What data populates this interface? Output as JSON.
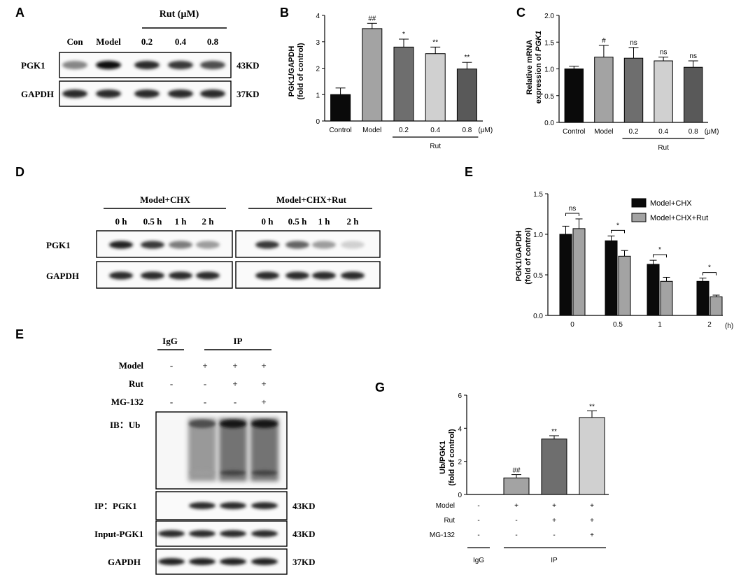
{
  "panel_letters": {
    "a": "A",
    "b": "B",
    "c": "C",
    "d": "D",
    "e1": "E",
    "e2": "E",
    "g": "G"
  },
  "panel_a": {
    "rut_header": "Rut (μM)",
    "lanes": [
      "Con",
      "Model",
      "0.2",
      "0.4",
      "0.8"
    ],
    "rows": [
      "PGK1",
      "GAPDH"
    ],
    "sizes": [
      "43KD",
      "37KD"
    ],
    "bands": [
      [
        0.45,
        1.0,
        0.85,
        0.8,
        0.7
      ],
      [
        0.85,
        0.85,
        0.85,
        0.85,
        0.85
      ]
    ]
  },
  "panel_d": {
    "groups": [
      "Model+CHX",
      "Model+CHX+Rut"
    ],
    "times": [
      "0 h",
      "0.5 h",
      "1 h",
      "2 h"
    ],
    "rows": [
      "PGK1",
      "GAPDH"
    ],
    "bands": [
      [
        0.9,
        0.8,
        0.5,
        0.35,
        0.8,
        0.6,
        0.35,
        0.12
      ],
      [
        0.85,
        0.85,
        0.85,
        0.85,
        0.85,
        0.85,
        0.85,
        0.85
      ]
    ]
  },
  "panel_f": {
    "header_igg": "IgG",
    "header_ip": "IP",
    "conditions": [
      {
        "label": "Model",
        "signs": [
          "-",
          "+",
          "+",
          "+"
        ]
      },
      {
        "label": "Rut",
        "signs": [
          "-",
          "-",
          "+",
          "+"
        ]
      },
      {
        "label": "MG-132",
        "signs": [
          "-",
          "-",
          "-",
          "+"
        ]
      }
    ],
    "blots": [
      {
        "label": "IB：Ub",
        "size": ""
      },
      {
        "label": "IP：PGK1",
        "size": "43KD"
      },
      {
        "label": "Input-PGK1",
        "size": "43KD"
      },
      {
        "label": "GAPDH",
        "size": "37KD"
      }
    ]
  },
  "chart_data": [
    {
      "panel": "B",
      "type": "bar",
      "ylabel": "PGK1/GAPDH (fold of control)",
      "categories": [
        "Control",
        "Model",
        "0.2",
        "0.4",
        "0.8"
      ],
      "values": [
        1.0,
        3.5,
        2.8,
        2.55,
        1.97
      ],
      "errors": [
        0.25,
        0.2,
        0.3,
        0.25,
        0.25
      ],
      "significance": [
        "",
        "##",
        "*",
        "**",
        "**"
      ],
      "colors": [
        "#0a0a0a",
        "#a3a3a3",
        "#6e6e6e",
        "#d0d0d0",
        "#595959"
      ],
      "ylim": [
        0,
        4
      ],
      "yticks": [
        "0",
        "1",
        "2",
        "3",
        "4"
      ],
      "unit": "(μM)",
      "group_label": "Rut"
    },
    {
      "panel": "C",
      "type": "bar",
      "ylabel": "Relative mRNA expression of PGK1",
      "categories": [
        "Control",
        "Model",
        "0.2",
        "0.4",
        "0.8"
      ],
      "values": [
        1.0,
        1.22,
        1.2,
        1.15,
        1.03
      ],
      "errors": [
        0.05,
        0.22,
        0.2,
        0.07,
        0.12
      ],
      "significance": [
        "",
        "#",
        "ns",
        "ns",
        "ns"
      ],
      "colors": [
        "#0a0a0a",
        "#a3a3a3",
        "#6e6e6e",
        "#d0d0d0",
        "#595959"
      ],
      "ylim": [
        0,
        2.0
      ],
      "yticks": [
        "0.0",
        "0.5",
        "1.0",
        "1.5",
        "2.0"
      ],
      "unit": "(μM)",
      "group_label": "Rut"
    },
    {
      "panel": "E",
      "type": "bar",
      "ylabel": "PGK1/GAPDH (fold of control)",
      "categories": [
        "0",
        "0.5",
        "1",
        "2"
      ],
      "unit": "(h)",
      "series": [
        {
          "name": "Model+CHX",
          "values": [
            1.0,
            0.92,
            0.63,
            0.42
          ],
          "errors": [
            0.1,
            0.06,
            0.05,
            0.04
          ],
          "color": "#0a0a0a"
        },
        {
          "name": "Model+CHX+Rut",
          "values": [
            1.07,
            0.73,
            0.42,
            0.23
          ],
          "errors": [
            0.12,
            0.07,
            0.05,
            0.02
          ],
          "color": "#a3a3a3"
        }
      ],
      "significance": [
        "ns",
        "*",
        "*",
        "*"
      ],
      "ylim": [
        0,
        1.5
      ],
      "yticks": [
        "0.0",
        "0.5",
        "1.0",
        "1.5"
      ],
      "legend": "top-right"
    },
    {
      "panel": "G",
      "type": "bar",
      "ylabel": "Ub/PGK1 (fold of control)",
      "values": [
        0,
        1.0,
        3.35,
        4.65
      ],
      "errors": [
        0,
        0.2,
        0.2,
        0.4
      ],
      "significance": [
        "",
        "##",
        "**",
        "**"
      ],
      "colors": [
        "#ffffff",
        "#a3a3a3",
        "#6e6e6e",
        "#d0d0d0"
      ],
      "ylim": [
        0,
        6
      ],
      "yticks": [
        "0",
        "2",
        "4",
        "6"
      ],
      "conditions": [
        {
          "label": "Model",
          "signs": [
            "-",
            "+",
            "+",
            "+"
          ]
        },
        {
          "label": "Rut",
          "signs": [
            "-",
            "-",
            "+",
            "+"
          ]
        },
        {
          "label": "MG-132",
          "signs": [
            "-",
            "-",
            "-",
            "+"
          ]
        }
      ],
      "groups": [
        "IgG",
        "IP"
      ]
    }
  ]
}
